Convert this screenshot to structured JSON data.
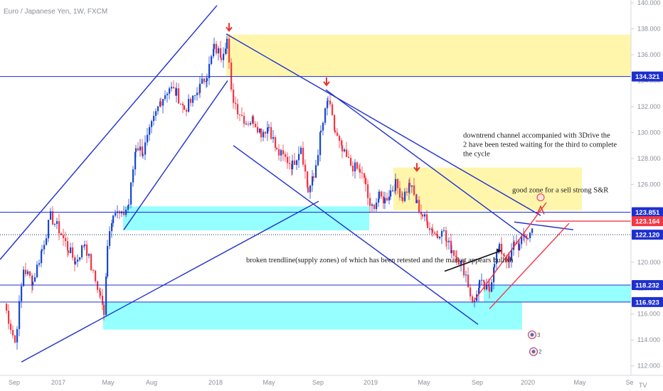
{
  "chart_title": "Euro / Japanese Yen, 1W, FXCM",
  "chart_data": {
    "type": "candlestick",
    "title": "Euro / Japanese Yen, 1W, FXCM",
    "ylim": [
      111.6,
      140.0
    ],
    "y_ticks": [
      "112.000",
      "114.000",
      "116.000",
      "118.000",
      "120.000",
      "122.000",
      "124.000",
      "126.000",
      "128.000",
      "130.000",
      "132.000",
      "134.000",
      "136.000",
      "138.000",
      "140.000"
    ],
    "x_ticks": [
      {
        "label": "Sep",
        "x": 20
      },
      {
        "label": "2017",
        "x": 82
      },
      {
        "label": "May",
        "x": 152
      },
      {
        "label": "Aug",
        "x": 213
      },
      {
        "label": "2018",
        "x": 303
      },
      {
        "label": "May",
        "x": 378
      },
      {
        "label": "Sep",
        "x": 447
      },
      {
        "label": "2019",
        "x": 521
      },
      {
        "label": "May",
        "x": 596
      },
      {
        "label": "Sep",
        "x": 671
      },
      {
        "label": "2020",
        "x": 742
      },
      {
        "label": "May",
        "x": 815
      },
      {
        "label": "Se",
        "x": 885
      }
    ],
    "price_levels": [
      {
        "label": "134.321",
        "value": 134.321,
        "color": "#1e2fcf"
      },
      {
        "label": "123.851",
        "value": 123.851,
        "color": "#1e2fcf"
      },
      {
        "label": "123.164",
        "value": 123.164,
        "color": "#f23645"
      },
      {
        "label": "122.120",
        "value": 122.12,
        "color": "#1e2fcf"
      },
      {
        "label": "118.232",
        "value": 118.232,
        "color": "#1e2fcf"
      },
      {
        "label": "116.923",
        "value": 116.923,
        "color": "#1e2fcf"
      }
    ],
    "zones": [
      {
        "color": "#fff59d",
        "x": [
          318,
          887
        ],
        "y": [
          134.3,
          137.55
        ]
      },
      {
        "color": "#fff59d",
        "x": [
          553,
          818
        ],
        "y": [
          124.0,
          127.3
        ]
      },
      {
        "color": "#84ffff",
        "x": [
          173,
          519
        ],
        "y": [
          122.45,
          124.3
        ]
      },
      {
        "color": "#84ffff",
        "x": [
          680,
          887
        ],
        "y": [
          116.92,
          118.2
        ]
      },
      {
        "color": "#84ffff",
        "x": [
          145,
          734
        ],
        "y": [
          114.8,
          116.9
        ]
      }
    ],
    "path_points": [
      [
        5,
        116.8
      ],
      [
        20,
        113.8
      ],
      [
        32,
        119.5
      ],
      [
        45,
        118.5
      ],
      [
        58,
        121.0
      ],
      [
        70,
        123.5
      ],
      [
        82,
        122.5
      ],
      [
        95,
        121.0
      ],
      [
        105,
        120.0
      ],
      [
        118,
        121.5
      ],
      [
        130,
        119.0
      ],
      [
        140,
        117.5
      ],
      [
        145,
        115.8
      ],
      [
        150,
        121.5
      ],
      [
        158,
        124.0
      ],
      [
        170,
        123.5
      ],
      [
        180,
        124.5
      ],
      [
        190,
        129.0
      ],
      [
        200,
        128.5
      ],
      [
        212,
        130.5
      ],
      [
        225,
        132.5
      ],
      [
        237,
        133.5
      ],
      [
        247,
        133.0
      ],
      [
        258,
        131.8
      ],
      [
        270,
        132.5
      ],
      [
        280,
        133.5
      ],
      [
        290,
        134.5
      ],
      [
        300,
        136.5
      ],
      [
        310,
        136.0
      ],
      [
        318,
        137.2
      ],
      [
        324,
        133.0
      ],
      [
        333,
        131.8
      ],
      [
        345,
        130.8
      ],
      [
        355,
        131.0
      ],
      [
        366,
        130.0
      ],
      [
        377,
        130.5
      ],
      [
        388,
        128.5
      ],
      [
        400,
        128.0
      ],
      [
        410,
        127.5
      ],
      [
        422,
        129.0
      ],
      [
        432,
        125.5
      ],
      [
        440,
        126.5
      ],
      [
        450,
        130.0
      ],
      [
        460,
        132.5
      ],
      [
        470,
        130.0
      ],
      [
        480,
        128.5
      ],
      [
        492,
        127.5
      ],
      [
        505,
        127.0
      ],
      [
        513,
        126.0
      ],
      [
        519,
        124.0
      ],
      [
        525,
        124.5
      ],
      [
        532,
        125.0
      ],
      [
        540,
        124.8
      ],
      [
        548,
        125.5
      ],
      [
        555,
        126.0
      ],
      [
        565,
        125.0
      ],
      [
        575,
        126.0
      ],
      [
        585,
        124.5
      ],
      [
        593,
        123.6
      ],
      [
        600,
        123.0
      ],
      [
        607,
        122.5
      ],
      [
        614,
        122.0
      ],
      [
        620,
        122.8
      ],
      [
        627,
        121.5
      ],
      [
        634,
        121.0
      ],
      [
        641,
        120.4
      ],
      [
        648,
        119.8
      ],
      [
        654,
        119.0
      ],
      [
        660,
        117.5
      ],
      [
        666,
        116.8
      ],
      [
        673,
        118.5
      ],
      [
        680,
        118.0
      ],
      [
        687,
        117.8
      ],
      [
        694,
        120.2
      ],
      [
        701,
        121.0
      ],
      [
        708,
        120.6
      ],
      [
        715,
        120.0
      ],
      [
        722,
        121.6
      ],
      [
        729,
        121.2
      ],
      [
        736,
        122.2
      ],
      [
        741,
        121.8
      ],
      [
        747,
        122.6
      ]
    ],
    "trend_lines": [
      {
        "color": "#1e2fcf",
        "from": [
          0,
          120.2
        ],
        "to": [
          305,
          139.8
        ]
      },
      {
        "color": "#1e2fcf",
        "from": [
          30,
          112.3
        ],
        "to": [
          448,
          124.7
        ]
      },
      {
        "color": "#1e2fcf",
        "from": [
          174,
          122.5
        ],
        "to": [
          320,
          134.0
        ]
      },
      {
        "color": "#1e2fcf",
        "from": [
          318,
          137.6
        ],
        "to": [
          760,
          123.6
        ]
      },
      {
        "color": "#1e2fcf",
        "from": [
          458,
          133.3
        ],
        "to": [
          740,
          121.9
        ]
      },
      {
        "color": "#1e2fcf",
        "from": [
          328,
          129.0
        ],
        "to": [
          672,
          115.2
        ]
      },
      {
        "color": "#1e2fcf",
        "from": [
          723,
          123.1
        ],
        "to": [
          806,
          122.5
        ]
      },
      {
        "color": "#f23645",
        "from": [
          666,
          117.0
        ],
        "to": [
          768,
          124.6
        ]
      },
      {
        "color": "#f23645",
        "from": [
          688,
          116.4
        ],
        "to": [
          800,
          123.0
        ]
      },
      {
        "color": "#f23645",
        "from": [
          753,
          123.164
        ],
        "to": [
          887,
          123.164
        ]
      }
    ],
    "arrows_down": [
      [
        322,
        137.9
      ],
      [
        459,
        133.7
      ],
      [
        586,
        127.1
      ]
    ],
    "annotations": [
      {
        "lines": [
          "downtrend channel accompanied with 3Drive the",
          "2 have been tested waiting for the third to complete",
          "the cycle"
        ],
        "x": 651,
        "y": 129.6
      },
      {
        "lines": [
          "good zone for a sell strong S&R"
        ],
        "x": 720,
        "y": 125.4
      },
      {
        "lines": [
          "broken trendline(supply zones) of which has been retested and the market appears bullish"
        ],
        "x": 346,
        "y": 120.0
      }
    ],
    "legend": "none",
    "grid": false
  },
  "colors": {
    "up": "#1848cc",
    "down": "#f23645",
    "axis": "#8a8f98"
  }
}
